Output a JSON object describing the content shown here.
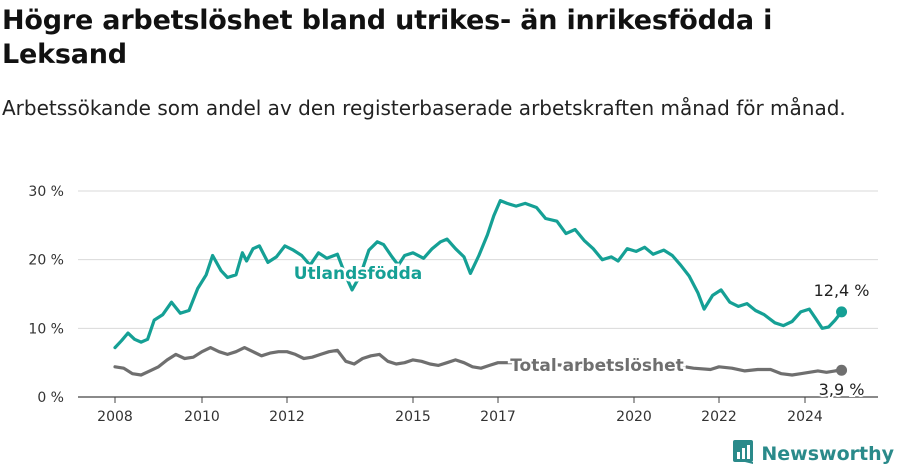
{
  "header": {
    "title": "Högre arbetslöshet bland utrikes- än inrikesfödda i Leksand",
    "subtitle": "Arbetssökande som andel av den registerbaserade arbetskraften månad för månad."
  },
  "brand": {
    "name": "Newsworthy",
    "icon": "newsworthy-logo-icon",
    "color": "#2a8a8a"
  },
  "chart_data": {
    "type": "line",
    "y_ticks": [
      "0 %",
      "10 %",
      "20 %",
      "30 %"
    ],
    "x_ticks": [
      "2008",
      "2010",
      "2012",
      "2015",
      "2017",
      "2020",
      "2022",
      "2024"
    ],
    "ylim": [
      0,
      30
    ],
    "grid": true,
    "series": [
      {
        "name": "Utlandsfödda",
        "color": "#15a095",
        "end_label": "12,4 %",
        "points": [
          [
            2008.0,
            7.2
          ],
          [
            2008.15,
            8.2
          ],
          [
            2008.3,
            9.3
          ],
          [
            2008.45,
            8.4
          ],
          [
            2008.6,
            8.0
          ],
          [
            2008.75,
            8.4
          ],
          [
            2008.9,
            11.2
          ],
          [
            2009.1,
            12.0
          ],
          [
            2009.3,
            13.8
          ],
          [
            2009.5,
            12.2
          ],
          [
            2009.7,
            12.6
          ],
          [
            2009.9,
            15.8
          ],
          [
            2010.1,
            17.8
          ],
          [
            2010.25,
            20.6
          ],
          [
            2010.45,
            18.4
          ],
          [
            2010.6,
            17.4
          ],
          [
            2010.8,
            17.8
          ],
          [
            2010.95,
            21.0
          ],
          [
            2011.05,
            19.8
          ],
          [
            2011.2,
            21.6
          ],
          [
            2011.35,
            22.0
          ],
          [
            2011.55,
            19.6
          ],
          [
            2011.75,
            20.4
          ],
          [
            2011.95,
            22.0
          ],
          [
            2012.15,
            21.4
          ],
          [
            2012.35,
            20.6
          ],
          [
            2012.55,
            19.2
          ],
          [
            2012.75,
            21.0
          ],
          [
            2012.95,
            20.2
          ],
          [
            2013.2,
            20.8
          ],
          [
            2013.4,
            17.6
          ],
          [
            2013.55,
            15.6
          ],
          [
            2013.75,
            17.8
          ],
          [
            2013.95,
            21.4
          ],
          [
            2014.15,
            22.6
          ],
          [
            2014.3,
            22.2
          ],
          [
            2014.5,
            20.4
          ],
          [
            2014.65,
            19.2
          ],
          [
            2014.8,
            20.6
          ],
          [
            2015.0,
            21.0
          ],
          [
            2015.25,
            20.2
          ],
          [
            2015.45,
            21.6
          ],
          [
            2015.65,
            22.6
          ],
          [
            2015.8,
            23.0
          ],
          [
            2016.0,
            21.6
          ],
          [
            2016.2,
            20.4
          ],
          [
            2016.35,
            18.0
          ],
          [
            2016.55,
            20.6
          ],
          [
            2016.75,
            23.6
          ],
          [
            2016.9,
            26.4
          ],
          [
            2017.05,
            28.6
          ],
          [
            2017.2,
            28.2
          ],
          [
            2017.4,
            27.8
          ],
          [
            2017.6,
            28.2
          ],
          [
            2017.85,
            27.6
          ],
          [
            2018.05,
            26.0
          ],
          [
            2018.3,
            25.6
          ],
          [
            2018.5,
            23.8
          ],
          [
            2018.7,
            24.4
          ],
          [
            2018.9,
            22.8
          ],
          [
            2019.1,
            21.6
          ],
          [
            2019.3,
            20.0
          ],
          [
            2019.5,
            20.4
          ],
          [
            2019.65,
            19.8
          ],
          [
            2019.85,
            21.6
          ],
          [
            2020.05,
            21.2
          ],
          [
            2020.25,
            21.8
          ],
          [
            2020.45,
            20.8
          ],
          [
            2020.7,
            21.4
          ],
          [
            2020.9,
            20.6
          ],
          [
            2021.1,
            19.2
          ],
          [
            2021.3,
            17.6
          ],
          [
            2021.5,
            15.2
          ],
          [
            2021.65,
            12.8
          ],
          [
            2021.85,
            14.8
          ],
          [
            2022.05,
            15.6
          ],
          [
            2022.25,
            13.8
          ],
          [
            2022.45,
            13.2
          ],
          [
            2022.65,
            13.6
          ],
          [
            2022.85,
            12.6
          ],
          [
            2023.05,
            12.0
          ],
          [
            2023.3,
            10.8
          ],
          [
            2023.5,
            10.4
          ],
          [
            2023.7,
            11.0
          ],
          [
            2023.9,
            12.4
          ],
          [
            2024.1,
            12.8
          ],
          [
            2024.25,
            11.4
          ],
          [
            2024.4,
            10.0
          ],
          [
            2024.55,
            10.2
          ],
          [
            2024.7,
            11.2
          ],
          [
            2024.85,
            12.4
          ]
        ]
      },
      {
        "name": "Total arbetslöshet",
        "color": "#6f6f6f",
        "end_label": "3,9 %",
        "points": [
          [
            2008.0,
            4.4
          ],
          [
            2008.2,
            4.2
          ],
          [
            2008.4,
            3.4
          ],
          [
            2008.6,
            3.2
          ],
          [
            2008.8,
            3.8
          ],
          [
            2009.0,
            4.4
          ],
          [
            2009.2,
            5.4
          ],
          [
            2009.4,
            6.2
          ],
          [
            2009.6,
            5.6
          ],
          [
            2009.8,
            5.8
          ],
          [
            2010.0,
            6.6
          ],
          [
            2010.2,
            7.2
          ],
          [
            2010.4,
            6.6
          ],
          [
            2010.6,
            6.2
          ],
          [
            2010.8,
            6.6
          ],
          [
            2011.0,
            7.2
          ],
          [
            2011.2,
            6.6
          ],
          [
            2011.4,
            6.0
          ],
          [
            2011.6,
            6.4
          ],
          [
            2011.8,
            6.6
          ],
          [
            2012.0,
            6.6
          ],
          [
            2012.2,
            6.2
          ],
          [
            2012.4,
            5.6
          ],
          [
            2012.6,
            5.8
          ],
          [
            2012.8,
            6.2
          ],
          [
            2013.0,
            6.6
          ],
          [
            2013.2,
            6.8
          ],
          [
            2013.4,
            5.2
          ],
          [
            2013.6,
            4.8
          ],
          [
            2013.8,
            5.6
          ],
          [
            2014.0,
            6.0
          ],
          [
            2014.2,
            6.2
          ],
          [
            2014.4,
            5.2
          ],
          [
            2014.6,
            4.8
          ],
          [
            2014.8,
            5.0
          ],
          [
            2015.0,
            5.4
          ],
          [
            2015.2,
            5.2
          ],
          [
            2015.4,
            4.8
          ],
          [
            2015.6,
            4.6
          ],
          [
            2015.8,
            5.0
          ],
          [
            2016.0,
            5.4
          ],
          [
            2016.2,
            5.0
          ],
          [
            2016.4,
            4.4
          ],
          [
            2016.6,
            4.2
          ],
          [
            2016.8,
            4.6
          ],
          [
            2017.0,
            5.0
          ],
          [
            2017.5,
            5.0
          ],
          [
            2018.0,
            4.8
          ],
          [
            2018.5,
            4.6
          ],
          [
            2019.0,
            4.4
          ],
          [
            2019.5,
            4.4
          ],
          [
            2020.0,
            4.6
          ],
          [
            2020.5,
            4.8
          ],
          [
            2021.0,
            4.6
          ],
          [
            2021.4,
            4.2
          ],
          [
            2021.8,
            4.0
          ],
          [
            2022.0,
            4.4
          ],
          [
            2022.3,
            4.2
          ],
          [
            2022.6,
            3.8
          ],
          [
            2022.9,
            4.0
          ],
          [
            2023.2,
            4.0
          ],
          [
            2023.45,
            3.4
          ],
          [
            2023.7,
            3.2
          ],
          [
            2023.9,
            3.4
          ],
          [
            2024.1,
            3.6
          ],
          [
            2024.3,
            3.8
          ],
          [
            2024.5,
            3.6
          ],
          [
            2024.7,
            3.8
          ],
          [
            2024.85,
            3.9
          ]
        ]
      }
    ]
  }
}
